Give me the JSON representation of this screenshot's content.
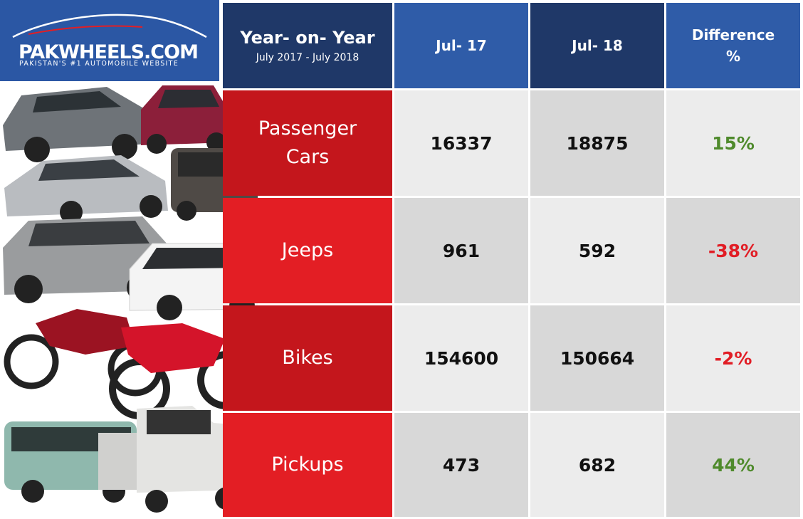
{
  "brand": {
    "name": "PAKWHEELS.COM",
    "tagline": "PAKISTAN'S #1 AUTOMOBILE WEBSITE"
  },
  "colors": {
    "header_blue": "#2f5ca8",
    "header_navy": "#1f3868",
    "red_dark": "#c4161c",
    "red_light": "#e31e24",
    "positive": "#4f8a2c",
    "negative": "#e11d25"
  },
  "header": {
    "title": "Year- on- Year",
    "subtitle": "July 2017 - July 2018",
    "col1": "Jul- 17",
    "col2": "Jul- 18",
    "col3_line1": "Difference",
    "col3_line2": "%"
  },
  "rows": [
    {
      "category_line1": "Passenger",
      "category_line2": "Cars",
      "jul17": "16337",
      "jul18": "18875",
      "diff": "15%"
    },
    {
      "category_line1": "Jeeps",
      "category_line2": "",
      "jul17": "961",
      "jul18": "592",
      "diff": "-38%"
    },
    {
      "category_line1": "Bikes",
      "category_line2": "",
      "jul17": "154600",
      "jul18": "150664",
      "diff": "-2%"
    },
    {
      "category_line1": "Pickups",
      "category_line2": "",
      "jul17": "473",
      "jul18": "682",
      "diff": "44%"
    }
  ],
  "chart_data": {
    "type": "table",
    "title": "Year- on- Year",
    "subtitle": "July 2017 - July 2018",
    "columns": [
      "Jul- 17",
      "Jul- 18",
      "Difference %"
    ],
    "categories": [
      "Passenger Cars",
      "Jeeps",
      "Bikes",
      "Pickups"
    ],
    "series": [
      {
        "name": "Jul- 17",
        "values": [
          16337,
          961,
          154600,
          473
        ]
      },
      {
        "name": "Jul- 18",
        "values": [
          18875,
          592,
          150664,
          682
        ]
      },
      {
        "name": "Difference %",
        "values": [
          15,
          -38,
          -2,
          44
        ]
      }
    ]
  }
}
